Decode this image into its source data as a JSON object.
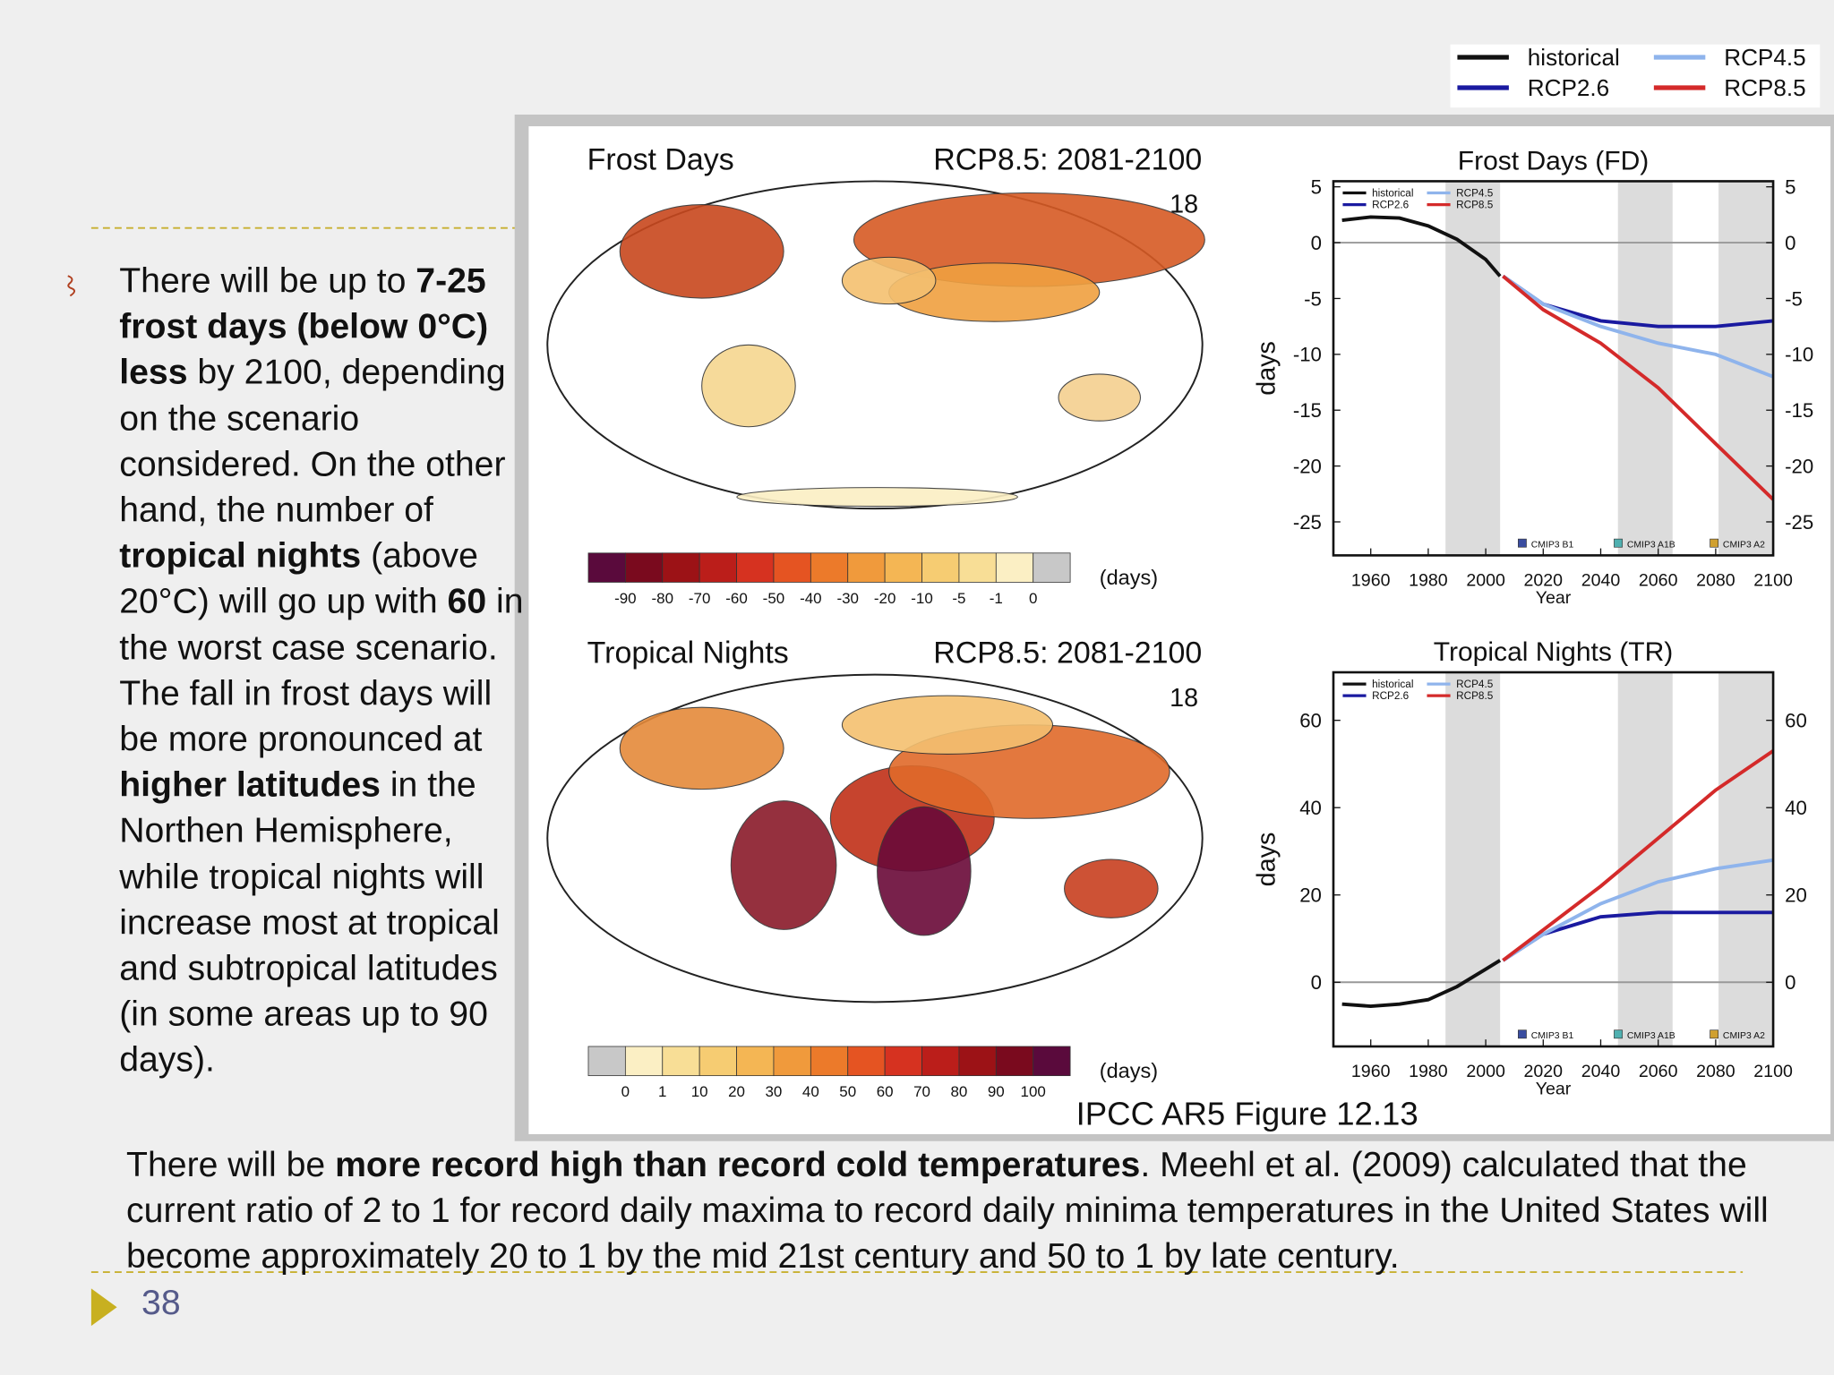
{
  "slide": {
    "bullet": [
      {
        "text": "There will be up to "
      },
      {
        "text": "7-25 frost days (below 0°C) less",
        "bold": true
      },
      {
        "text": " by 2100, depending on the scenario considered. On the other hand, the number of  "
      },
      {
        "text": "tropical nights",
        "bold": true
      },
      {
        "text": " (above 20°C) will go up with "
      },
      {
        "text": "60",
        "bold": true
      },
      {
        "text": " in the worst case scenario. The fall in frost days will be more pronounced at "
      },
      {
        "text": "higher latitudes",
        "bold": true
      },
      {
        "text": " in the Northen Hemisphere, while tropical nights will increase most at tropical and subtropical latitudes (in some areas up to 90 days)."
      }
    ],
    "body": [
      {
        "text": "There will be "
      },
      {
        "text": "more record high than record cold temperatures",
        "bold": true
      },
      {
        "text": ". Meehl et al. (2009) calculated that the current ratio of 2 to 1 for record daily maxima to record daily minima temperatures in the United States will become approximately 20 to 1 by the mid 21st century and 50 to 1 by late century."
      }
    ],
    "page_number": 38,
    "figure": {
      "caption": "IPCC AR5 Figure 12.13",
      "legend": [
        {
          "name": "historical",
          "color": "#111111"
        },
        {
          "name": "RCP2.6",
          "color": "#1a1aa0"
        },
        {
          "name": "RCP4.5",
          "color": "#8fb4ec"
        },
        {
          "name": "RCP8.5",
          "color": "#d42a2a"
        }
      ],
      "maps": [
        {
          "title": "Frost Days",
          "scenario": "RCP8.5: 2081-2100",
          "models": 18,
          "unit": "(days)",
          "colorbar_ticks": [
            -90,
            -80,
            -70,
            -60,
            -50,
            -40,
            -30,
            -20,
            -10,
            -5,
            -1,
            0
          ],
          "colorbar_colors": [
            "#5a0a3c",
            "#7a0a1e",
            "#9c1216",
            "#bb1e1a",
            "#d63220",
            "#e55422",
            "#ec7a2a",
            "#f09a3c",
            "#f4b654",
            "#f6cc72",
            "#f8de96",
            "#fbefc4",
            "#c8c8c8"
          ]
        },
        {
          "title": "Tropical Nights",
          "scenario": "RCP8.5: 2081-2100",
          "models": 18,
          "unit": "(days)",
          "colorbar_ticks": [
            0,
            1,
            10,
            20,
            30,
            40,
            50,
            60,
            70,
            80,
            90,
            100
          ],
          "colorbar_colors": [
            "#c8c8c8",
            "#fbefc4",
            "#f8de96",
            "#f6cc72",
            "#f4b654",
            "#f09a3c",
            "#ec7a2a",
            "#e55422",
            "#d63220",
            "#bb1e1a",
            "#9c1216",
            "#7a0a1e",
            "#5a0a3c"
          ]
        }
      ],
      "charts": [
        {
          "type": "line",
          "title": "Frost Days (FD)",
          "y_label": "days",
          "x_label": "Year",
          "xlim": [
            1947,
            2100
          ],
          "xticks": [
            1960,
            1980,
            2000,
            2020,
            2040,
            2060,
            2080,
            2100
          ],
          "ylim": [
            -28,
            5.5
          ],
          "yticks": [
            5,
            0,
            -5,
            -10,
            -15,
            -20,
            -25
          ],
          "shaded_periods": [
            [
              1986,
              2005
            ],
            [
              2046,
              2065
            ],
            [
              2081,
              2100
            ]
          ],
          "series": [
            {
              "name": "historical",
              "color": "#111111",
              "x": [
                1950,
                1960,
                1970,
                1980,
                1990,
                2000,
                2005
              ],
              "values": [
                2,
                2.3,
                2.2,
                1.5,
                0.3,
                -1.5,
                -3
              ]
            },
            {
              "name": "RCP2.6",
              "color": "#1a1aa0",
              "x": [
                2006,
                2020,
                2040,
                2060,
                2080,
                2100
              ],
              "values": [
                -3,
                -5.5,
                -7,
                -7.5,
                -7.5,
                -7
              ]
            },
            {
              "name": "RCP4.5",
              "color": "#8fb4ec",
              "x": [
                2006,
                2020,
                2040,
                2060,
                2080,
                2100
              ],
              "values": [
                -3,
                -5.5,
                -7.5,
                -9,
                -10,
                -12
              ]
            },
            {
              "name": "RCP8.5",
              "color": "#d42a2a",
              "x": [
                2006,
                2020,
                2040,
                2060,
                2080,
                2100
              ],
              "values": [
                -3,
                -6,
                -9,
                -13,
                -18,
                -23
              ]
            }
          ],
          "box_legend": [
            {
              "label": "CMIP3 B1",
              "color": "#3a4da0"
            },
            {
              "label": "CMIP3 A1B",
              "color": "#4fb0b0"
            },
            {
              "label": "CMIP3 A2",
              "color": "#d0a030"
            }
          ]
        },
        {
          "type": "line",
          "title": "Tropical Nights (TR)",
          "y_label": "days",
          "x_label": "Year",
          "xlim": [
            1947,
            2100
          ],
          "xticks": [
            1960,
            1980,
            2000,
            2020,
            2040,
            2060,
            2080,
            2100
          ],
          "ylim": [
            -14.7,
            71
          ],
          "yticks": [
            60,
            40,
            20,
            0
          ],
          "shaded_periods": [
            [
              1986,
              2005
            ],
            [
              2046,
              2065
            ],
            [
              2081,
              2100
            ]
          ],
          "series": [
            {
              "name": "historical",
              "color": "#111111",
              "x": [
                1950,
                1960,
                1970,
                1980,
                1990,
                2000,
                2005
              ],
              "values": [
                -5,
                -5.5,
                -5,
                -4,
                -1,
                3,
                5
              ]
            },
            {
              "name": "RCP2.6",
              "color": "#1a1aa0",
              "x": [
                2006,
                2020,
                2040,
                2060,
                2080,
                2100
              ],
              "values": [
                5,
                11,
                15,
                16,
                16,
                16
              ]
            },
            {
              "name": "RCP4.5",
              "color": "#8fb4ec",
              "x": [
                2006,
                2020,
                2040,
                2060,
                2080,
                2100
              ],
              "values": [
                5,
                11,
                18,
                23,
                26,
                28
              ]
            },
            {
              "name": "RCP8.5",
              "color": "#d42a2a",
              "x": [
                2006,
                2020,
                2040,
                2060,
                2080,
                2100
              ],
              "values": [
                5,
                12,
                22,
                33,
                44,
                53
              ]
            }
          ],
          "box_legend": [
            {
              "label": "CMIP3 B1",
              "color": "#3a4da0"
            },
            {
              "label": "CMIP3 A1B",
              "color": "#4fb0b0"
            },
            {
              "label": "CMIP3 A2",
              "color": "#d0a030"
            }
          ]
        }
      ]
    }
  }
}
